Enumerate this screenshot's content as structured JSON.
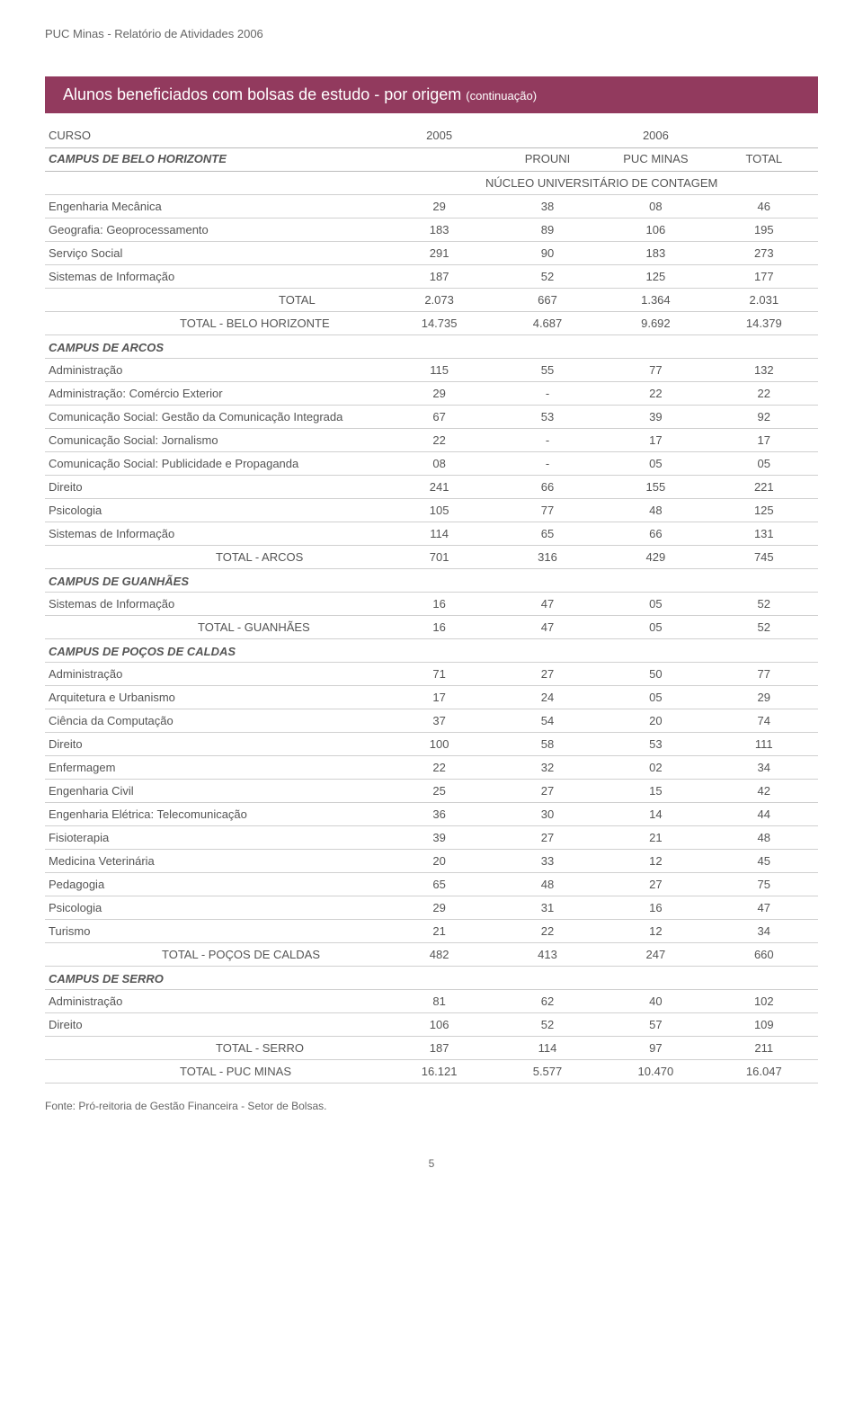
{
  "doc_header": "PUC Minas - Relatório de Atividades 2006",
  "title": {
    "main": "Alunos beneficiados com bolsas de estudo - por origem ",
    "sub": "(continuação)"
  },
  "columns": {
    "curso": "CURSO",
    "c2005": "2005",
    "c2006": "2006",
    "prouni": "PROUNI",
    "pucminas": "PUC MINAS",
    "total": "TOTAL"
  },
  "colors": {
    "band_bg": "#923a5e",
    "band_text": "#ffffff",
    "text": "#555555",
    "rule": "#d0d0d0",
    "header_rule": "#bbbbbb",
    "bg": "#ffffff"
  },
  "fonts": {
    "body_size": 13,
    "header_size": 13,
    "title_size": 18,
    "family": "Arial"
  },
  "campus_bh": {
    "label": "CAMPUS DE BELO HORIZONTE",
    "section": "NÚCLEO UNIVERSITÁRIO DE CONTAGEM",
    "rows": [
      {
        "label": "Engenharia Mecânica",
        "c2005": "29",
        "prouni": "38",
        "puc": "08",
        "total": "46"
      },
      {
        "label": "Geografia: Geoprocessamento",
        "c2005": "183",
        "prouni": "89",
        "puc": "106",
        "total": "195"
      },
      {
        "label": "Serviço Social",
        "c2005": "291",
        "prouni": "90",
        "puc": "183",
        "total": "273"
      },
      {
        "label": "Sistemas de Informação",
        "c2005": "187",
        "prouni": "52",
        "puc": "125",
        "total": "177"
      }
    ],
    "total_section": {
      "label": "TOTAL",
      "c2005": "2.073",
      "prouni": "667",
      "puc": "1.364",
      "total": "2.031"
    },
    "total_bh": {
      "label": "TOTAL - BELO HORIZONTE",
      "c2005": "14.735",
      "prouni": "4.687",
      "puc": "9.692",
      "total": "14.379"
    }
  },
  "campus_arcos": {
    "label": "CAMPUS DE ARCOS",
    "rows": [
      {
        "label": "Administração",
        "c2005": "115",
        "prouni": "55",
        "puc": "77",
        "total": "132"
      },
      {
        "label": "Administração: Comércio Exterior",
        "c2005": "29",
        "prouni": "-",
        "puc": "22",
        "total": "22"
      },
      {
        "label": "Comunicação Social: Gestão da Comunicação Integrada",
        "c2005": "67",
        "prouni": "53",
        "puc": "39",
        "total": "92"
      },
      {
        "label": "Comunicação Social: Jornalismo",
        "c2005": "22",
        "prouni": "-",
        "puc": "17",
        "total": "17"
      },
      {
        "label": "Comunicação Social: Publicidade e Propaganda",
        "c2005": "08",
        "prouni": "-",
        "puc": "05",
        "total": "05"
      },
      {
        "label": "Direito",
        "c2005": "241",
        "prouni": "66",
        "puc": "155",
        "total": "221"
      },
      {
        "label": "Psicologia",
        "c2005": "105",
        "prouni": "77",
        "puc": "48",
        "total": "125"
      },
      {
        "label": "Sistemas de Informação",
        "c2005": "114",
        "prouni": "65",
        "puc": "66",
        "total": "131"
      }
    ],
    "total": {
      "label": "TOTAL - ARCOS",
      "c2005": "701",
      "prouni": "316",
      "puc": "429",
      "total": "745"
    }
  },
  "campus_guanhaes": {
    "label": "CAMPUS DE GUANHÃES",
    "rows": [
      {
        "label": "Sistemas de Informação",
        "c2005": "16",
        "prouni": "47",
        "puc": "05",
        "total": "52"
      }
    ],
    "total": {
      "label": "TOTAL - GUANHÃES",
      "c2005": "16",
      "prouni": "47",
      "puc": "05",
      "total": "52"
    }
  },
  "campus_pocos": {
    "label": "CAMPUS DE POÇOS DE CALDAS",
    "rows": [
      {
        "label": "Administração",
        "c2005": "71",
        "prouni": "27",
        "puc": "50",
        "total": "77"
      },
      {
        "label": "Arquitetura e Urbanismo",
        "c2005": "17",
        "prouni": "24",
        "puc": "05",
        "total": "29"
      },
      {
        "label": "Ciência da Computação",
        "c2005": "37",
        "prouni": "54",
        "puc": "20",
        "total": "74"
      },
      {
        "label": "Direito",
        "c2005": "100",
        "prouni": "58",
        "puc": "53",
        "total": "111"
      },
      {
        "label": "Enfermagem",
        "c2005": "22",
        "prouni": "32",
        "puc": "02",
        "total": "34"
      },
      {
        "label": "Engenharia Civil",
        "c2005": "25",
        "prouni": "27",
        "puc": "15",
        "total": "42"
      },
      {
        "label": "Engenharia Elétrica: Telecomunicação",
        "c2005": "36",
        "prouni": "30",
        "puc": "14",
        "total": "44"
      },
      {
        "label": "Fisioterapia",
        "c2005": "39",
        "prouni": "27",
        "puc": "21",
        "total": "48"
      },
      {
        "label": "Medicina Veterinária",
        "c2005": "20",
        "prouni": "33",
        "puc": "12",
        "total": "45"
      },
      {
        "label": "Pedagogia",
        "c2005": "65",
        "prouni": "48",
        "puc": "27",
        "total": "75"
      },
      {
        "label": "Psicologia",
        "c2005": "29",
        "prouni": "31",
        "puc": "16",
        "total": "47"
      },
      {
        "label": "Turismo",
        "c2005": "21",
        "prouni": "22",
        "puc": "12",
        "total": "34"
      }
    ],
    "total": {
      "label": "TOTAL - POÇOS DE CALDAS",
      "c2005": "482",
      "prouni": "413",
      "puc": "247",
      "total": "660"
    }
  },
  "campus_serro": {
    "label": "CAMPUS DE SERRO",
    "rows": [
      {
        "label": "Administração",
        "c2005": "81",
        "prouni": "62",
        "puc": "40",
        "total": "102"
      },
      {
        "label": "Direito",
        "c2005": "106",
        "prouni": "52",
        "puc": "57",
        "total": "109"
      }
    ],
    "total": {
      "label": "TOTAL - SERRO",
      "c2005": "187",
      "prouni": "114",
      "puc": "97",
      "total": "211"
    }
  },
  "grand_total": {
    "label": "TOTAL - PUC MINAS",
    "c2005": "16.121",
    "prouni": "5.577",
    "puc": "10.470",
    "total": "16.047"
  },
  "footnote": "Fonte: Pró-reitoria de Gestão Financeira - Setor de Bolsas.",
  "page": "5"
}
